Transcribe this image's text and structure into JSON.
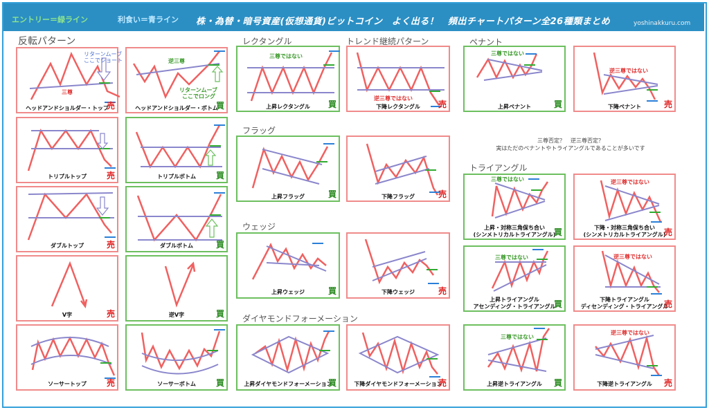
{
  "header": {
    "entry": "エントリー＝緑ライン",
    "take_profit": "利食い＝青ライン",
    "title": "株・為替・暗号資産(仮想通貨)ビットコイン　よく出る！　頻出チャートパターン全26種類まとめ",
    "site": "yoshinakkuru.com"
  },
  "sections": {
    "reversal": "反転パターン",
    "rectangle": "レクタングル",
    "trend": "トレンド継続パターン",
    "pennant": "ペナント",
    "flag": "フラッグ",
    "wedge": "ウェッジ",
    "diamond": "ダイヤモンドフォーメーション",
    "triangle": "トライアングル"
  },
  "note": {
    "line1": "三尊否定？　逆三尊否定？",
    "line2": "実はただのペナントやトライアングルであることが多いです"
  },
  "marks": {
    "sell": "売",
    "buy": "買"
  },
  "ann": {
    "santon": "三尊",
    "gyaku_santon": "逆三尊",
    "not_santon": "三尊ではない",
    "not_gyaku": "逆三尊ではない",
    "return_short1": "リターンムーブ",
    "return_short2": "ここでショート",
    "return_long1": "リターンムーブ",
    "return_long2": "ここでロング"
  },
  "labels": {
    "hs_top": "ヘッドアンドショルダー・トップ",
    "hs_bottom": "ヘッドアンドショルダー・ボトム",
    "triple_top": "トリプルトップ",
    "triple_bottom": "トリプルボトム",
    "double_top": "ダブルトップ",
    "double_bottom": "ダブルボトム",
    "v": "V字",
    "inv_v": "逆V字",
    "saucer_top": "ソーサートップ",
    "saucer_bottom": "ソーサーボトム",
    "rect_up": "上昇レクタングル",
    "rect_down": "下降レクタングル",
    "flag_up": "上昇フラッグ",
    "flag_down": "下降フラッグ",
    "wedge_up": "上昇ウェッジ",
    "wedge_down": "下降ウェッジ",
    "diamond_up": "上昇ダイヤモンドフォーメーション",
    "diamond_down": "下降ダイヤモンドフォーメーション",
    "pennant_up": "上昇ペナント",
    "pennant_down": "下降ペナント",
    "sym_up_1": "上昇・対称三角保ち合い",
    "sym_up_2": "(シンメトリカルトライアングル)",
    "sym_down_1": "下降・対称三角保ち合い",
    "sym_down_2": "(シンメトリカルトライアングル)",
    "asc_1": "上昇トライアングル",
    "asc_2": "アセンディング・トライアングル",
    "desc_1": "下降トライアングル",
    "desc_2": "ディセンディング・トライアングル",
    "inv_tri_up": "上昇逆トライアングル",
    "inv_tri_down": "下降逆トライアングル"
  },
  "colors": {
    "header": "#2b8fc4",
    "price_line": "#f06060",
    "trend_line": "#8a86cc",
    "entry_line": "#2faa2f",
    "target_line": "#2a7fd8",
    "sell_panel": "#f08a8a",
    "buy_panel": "#6cbf5e"
  }
}
